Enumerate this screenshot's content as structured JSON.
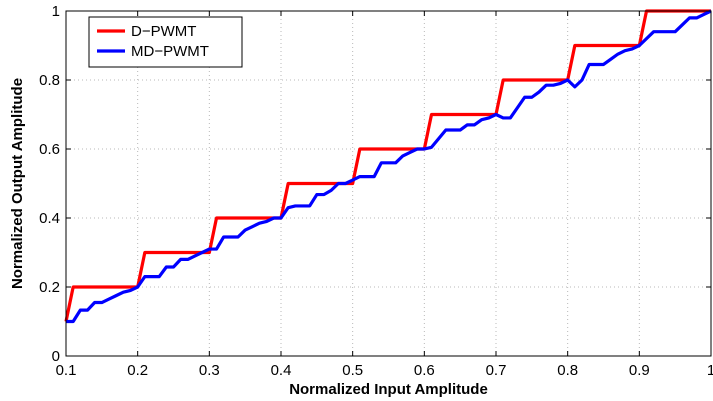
{
  "chart_data": {
    "type": "line",
    "title": "",
    "xlabel": "Normalized Input Amplitude",
    "ylabel": "Normalized Output Amplitude",
    "xlim": [
      0.1,
      1
    ],
    "ylim": [
      0,
      1
    ],
    "xticks": [
      0.1,
      0.2,
      0.3,
      0.4,
      0.5,
      0.6,
      0.7,
      0.8,
      0.9,
      1
    ],
    "yticks": [
      0,
      0.2,
      0.4,
      0.6,
      0.8,
      1
    ],
    "xtick_labels": [
      "0.1",
      "0.2",
      "0.3",
      "0.4",
      "0.5",
      "0.6",
      "0.7",
      "0.8",
      "0.9",
      "1"
    ],
    "ytick_labels": [
      "0",
      "0.2",
      "0.4",
      "0.6",
      "0.8",
      "1"
    ],
    "grid": true,
    "legend_position": "top-left",
    "series": [
      {
        "name": "D−PWMT",
        "color": "#ff0000",
        "points": [
          [
            0.1,
            0.1
          ],
          [
            0.11,
            0.2
          ],
          [
            0.2,
            0.2
          ],
          [
            0.21,
            0.3
          ],
          [
            0.3,
            0.3
          ],
          [
            0.31,
            0.4
          ],
          [
            0.4,
            0.4
          ],
          [
            0.41,
            0.5
          ],
          [
            0.5,
            0.5
          ],
          [
            0.51,
            0.6
          ],
          [
            0.6,
            0.6
          ],
          [
            0.61,
            0.7
          ],
          [
            0.7,
            0.7
          ],
          [
            0.71,
            0.8
          ],
          [
            0.8,
            0.8
          ],
          [
            0.81,
            0.9
          ],
          [
            0.9,
            0.9
          ],
          [
            0.91,
            1.0
          ],
          [
            1.0,
            1.0
          ]
        ]
      },
      {
        "name": "MD−PWMT",
        "color": "#0000ff",
        "points": [
          [
            0.1,
            0.1
          ],
          [
            0.11,
            0.1
          ],
          [
            0.12,
            0.133
          ],
          [
            0.13,
            0.133
          ],
          [
            0.14,
            0.155
          ],
          [
            0.15,
            0.155
          ],
          [
            0.16,
            0.165
          ],
          [
            0.17,
            0.175
          ],
          [
            0.18,
            0.185
          ],
          [
            0.19,
            0.19
          ],
          [
            0.2,
            0.2
          ],
          [
            0.21,
            0.23
          ],
          [
            0.22,
            0.23
          ],
          [
            0.23,
            0.23
          ],
          [
            0.24,
            0.258
          ],
          [
            0.25,
            0.258
          ],
          [
            0.26,
            0.28
          ],
          [
            0.27,
            0.28
          ],
          [
            0.28,
            0.29
          ],
          [
            0.29,
            0.3
          ],
          [
            0.3,
            0.31
          ],
          [
            0.31,
            0.31
          ],
          [
            0.32,
            0.345
          ],
          [
            0.33,
            0.345
          ],
          [
            0.34,
            0.345
          ],
          [
            0.35,
            0.365
          ],
          [
            0.36,
            0.375
          ],
          [
            0.37,
            0.385
          ],
          [
            0.38,
            0.39
          ],
          [
            0.39,
            0.4
          ],
          [
            0.4,
            0.4
          ],
          [
            0.41,
            0.43
          ],
          [
            0.42,
            0.435
          ],
          [
            0.43,
            0.435
          ],
          [
            0.44,
            0.435
          ],
          [
            0.45,
            0.468
          ],
          [
            0.46,
            0.468
          ],
          [
            0.47,
            0.48
          ],
          [
            0.48,
            0.5
          ],
          [
            0.49,
            0.5
          ],
          [
            0.5,
            0.51
          ],
          [
            0.51,
            0.52
          ],
          [
            0.52,
            0.52
          ],
          [
            0.53,
            0.52
          ],
          [
            0.54,
            0.56
          ],
          [
            0.55,
            0.56
          ],
          [
            0.56,
            0.56
          ],
          [
            0.57,
            0.58
          ],
          [
            0.58,
            0.59
          ],
          [
            0.59,
            0.6
          ],
          [
            0.6,
            0.6
          ],
          [
            0.61,
            0.605
          ],
          [
            0.62,
            0.63
          ],
          [
            0.63,
            0.655
          ],
          [
            0.64,
            0.655
          ],
          [
            0.65,
            0.655
          ],
          [
            0.66,
            0.67
          ],
          [
            0.67,
            0.67
          ],
          [
            0.68,
            0.685
          ],
          [
            0.69,
            0.69
          ],
          [
            0.7,
            0.7
          ],
          [
            0.71,
            0.69
          ],
          [
            0.72,
            0.69
          ],
          [
            0.73,
            0.72
          ],
          [
            0.74,
            0.75
          ],
          [
            0.75,
            0.75
          ],
          [
            0.76,
            0.765
          ],
          [
            0.77,
            0.785
          ],
          [
            0.78,
            0.785
          ],
          [
            0.79,
            0.79
          ],
          [
            0.8,
            0.8
          ],
          [
            0.81,
            0.78
          ],
          [
            0.82,
            0.8
          ],
          [
            0.83,
            0.845
          ],
          [
            0.84,
            0.845
          ],
          [
            0.85,
            0.845
          ],
          [
            0.86,
            0.86
          ],
          [
            0.87,
            0.875
          ],
          [
            0.88,
            0.885
          ],
          [
            0.89,
            0.89
          ],
          [
            0.9,
            0.9
          ],
          [
            0.91,
            0.92
          ],
          [
            0.92,
            0.94
          ],
          [
            0.93,
            0.94
          ],
          [
            0.94,
            0.94
          ],
          [
            0.95,
            0.94
          ],
          [
            0.96,
            0.96
          ],
          [
            0.97,
            0.98
          ],
          [
            0.98,
            0.98
          ],
          [
            0.99,
            0.99
          ],
          [
            1.0,
            1.0
          ]
        ]
      }
    ]
  }
}
